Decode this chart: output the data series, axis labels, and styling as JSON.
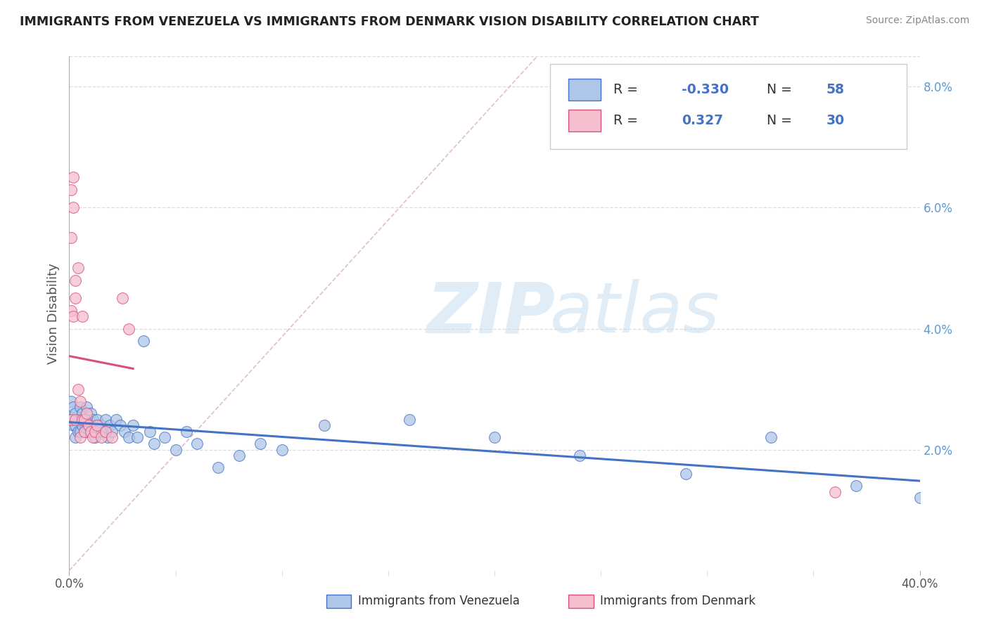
{
  "title": "IMMIGRANTS FROM VENEZUELA VS IMMIGRANTS FROM DENMARK VISION DISABILITY CORRELATION CHART",
  "source": "Source: ZipAtlas.com",
  "ylabel": "Vision Disability",
  "xlim": [
    0.0,
    0.4
  ],
  "ylim": [
    0.0,
    0.085
  ],
  "yticks": [
    0.0,
    0.02,
    0.04,
    0.06,
    0.08
  ],
  "ytick_labels": [
    "",
    "2.0%",
    "4.0%",
    "6.0%",
    "8.0%"
  ],
  "color_venezuela": "#aec6e8",
  "color_denmark": "#f5bfd0",
  "line_color_venezuela": "#4472c4",
  "line_color_denmark": "#d94f7a",
  "watermark_zip": "ZIP",
  "watermark_atlas": "atlas",
  "venezuela_x": [
    0.001,
    0.001,
    0.002,
    0.002,
    0.003,
    0.003,
    0.003,
    0.004,
    0.004,
    0.005,
    0.005,
    0.005,
    0.006,
    0.006,
    0.007,
    0.007,
    0.008,
    0.008,
    0.008,
    0.009,
    0.01,
    0.01,
    0.011,
    0.012,
    0.012,
    0.013,
    0.014,
    0.015,
    0.016,
    0.017,
    0.018,
    0.019,
    0.02,
    0.022,
    0.024,
    0.026,
    0.028,
    0.03,
    0.032,
    0.035,
    0.038,
    0.04,
    0.045,
    0.05,
    0.055,
    0.06,
    0.07,
    0.08,
    0.09,
    0.1,
    0.12,
    0.16,
    0.2,
    0.24,
    0.29,
    0.33,
    0.37,
    0.4
  ],
  "venezuela_y": [
    0.028,
    0.025,
    0.027,
    0.024,
    0.026,
    0.024,
    0.022,
    0.025,
    0.023,
    0.027,
    0.025,
    0.023,
    0.026,
    0.024,
    0.025,
    0.023,
    0.027,
    0.025,
    0.023,
    0.024,
    0.026,
    0.024,
    0.025,
    0.024,
    0.022,
    0.025,
    0.023,
    0.024,
    0.023,
    0.025,
    0.022,
    0.024,
    0.023,
    0.025,
    0.024,
    0.023,
    0.022,
    0.024,
    0.022,
    0.038,
    0.023,
    0.021,
    0.022,
    0.02,
    0.023,
    0.021,
    0.017,
    0.019,
    0.021,
    0.02,
    0.024,
    0.025,
    0.022,
    0.019,
    0.016,
    0.022,
    0.014,
    0.012
  ],
  "denmark_x": [
    0.001,
    0.001,
    0.001,
    0.001,
    0.002,
    0.002,
    0.002,
    0.003,
    0.003,
    0.003,
    0.004,
    0.004,
    0.005,
    0.005,
    0.006,
    0.006,
    0.007,
    0.007,
    0.008,
    0.009,
    0.01,
    0.011,
    0.012,
    0.013,
    0.015,
    0.017,
    0.02,
    0.025,
    0.028,
    0.36
  ],
  "denmark_y": [
    0.055,
    0.063,
    0.025,
    0.043,
    0.065,
    0.06,
    0.042,
    0.025,
    0.048,
    0.045,
    0.05,
    0.03,
    0.028,
    0.022,
    0.042,
    0.025,
    0.025,
    0.023,
    0.026,
    0.024,
    0.023,
    0.022,
    0.023,
    0.024,
    0.022,
    0.023,
    0.022,
    0.045,
    0.04,
    0.013
  ],
  "legend_blue_color": "#5b9bd5",
  "legend_pink_color": "#d94f7a",
  "text_color_dark": "#333333",
  "text_color_blue": "#4472c4"
}
